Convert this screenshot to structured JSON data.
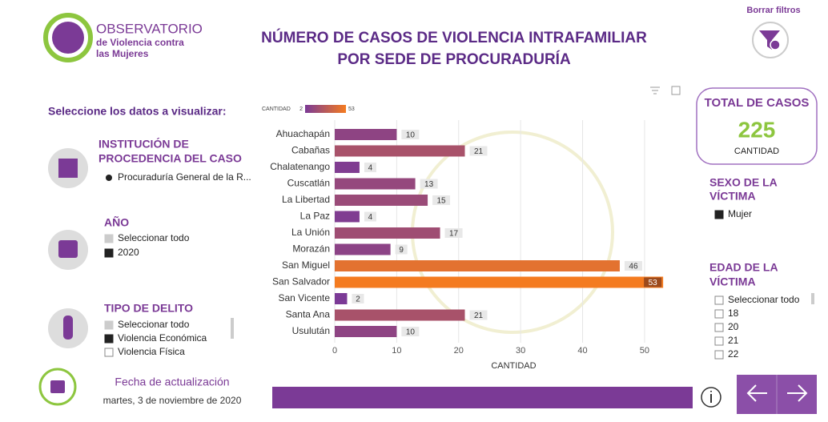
{
  "logo": {
    "line1": "OBSERVATORIO",
    "line2": "de Violencia contra",
    "line3": "las Mujeres"
  },
  "header": {
    "title_line1": "NÚMERO DE CASOS DE VIOLENCIA INTRAFAMILIAR",
    "title_line2": "POR SEDE DE PROCURADURÍA",
    "clear_filters": "Borrar filtros"
  },
  "filters": {
    "prompt": "Seleccione los datos a visualizar:",
    "institution": {
      "title_line1": "INSTITUCIÓN DE",
      "title_line2": "PROCEDENCIA DEL CASO",
      "options": [
        {
          "label": "Procuraduría General de la R...",
          "state": "radio"
        }
      ]
    },
    "year": {
      "title": "AÑO",
      "options": [
        {
          "label": "Seleccionar todo",
          "state": "partial"
        },
        {
          "label": "2020",
          "state": "checked"
        }
      ]
    },
    "crime_type": {
      "title": "TIPO DE DELITO",
      "options": [
        {
          "label": "Seleccionar todo",
          "state": "partial"
        },
        {
          "label": "Violencia Económica",
          "state": "checked"
        },
        {
          "label": "Violencia Física",
          "state": "empty"
        }
      ]
    }
  },
  "update": {
    "label": "Fecha de actualización",
    "date": "martes, 3 de noviembre de 2020"
  },
  "total": {
    "title": "TOTAL DE CASOS",
    "value": 225,
    "label": "CANTIDAD"
  },
  "sex": {
    "title_line1": "SEXO DE LA",
    "title_line2": "VÍCTIMA",
    "options": [
      {
        "label": "Mujer",
        "state": "checked"
      }
    ]
  },
  "age": {
    "title_line1": "EDAD DE LA",
    "title_line2": "VÍCTIMA",
    "options": [
      {
        "label": "Seleccionar todo",
        "state": "empty"
      },
      {
        "label": "18",
        "state": "empty"
      },
      {
        "label": "20",
        "state": "empty"
      },
      {
        "label": "21",
        "state": "empty"
      },
      {
        "label": "22",
        "state": "empty"
      }
    ]
  },
  "chart_data": {
    "type": "bar",
    "orientation": "horizontal",
    "categories": [
      "Ahuachapán",
      "Cabañas",
      "Chalatenango",
      "Cuscatlán",
      "La Libertad",
      "La Paz",
      "La Unión",
      "Morazán",
      "San Miguel",
      "San Salvador",
      "San Vicente",
      "Santa Ana",
      "Usulután"
    ],
    "values": [
      10,
      21,
      4,
      13,
      15,
      4,
      17,
      9,
      46,
      53,
      2,
      21,
      10
    ],
    "xlabel": "CANTIDAD",
    "xlim": [
      0,
      53.5
    ],
    "xticks": [
      0,
      10,
      20,
      30,
      40,
      50
    ],
    "grid": true,
    "color_scale": {
      "title": "CANTIDAD",
      "min": 2,
      "max": 53,
      "colors": [
        "#7b3a96",
        "#f47b20"
      ]
    }
  }
}
